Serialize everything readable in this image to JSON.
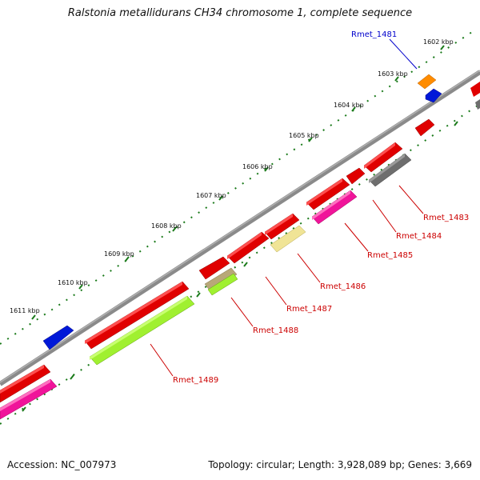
{
  "title": "Ralstonia metallidurans CH34 chromosome 1, complete sequence",
  "footer": {
    "accession": "Accession: NC_007973",
    "summary": "Topology: circular; Length: 3,928,089 bp; Genes: 3,669"
  },
  "kbp_labels": [
    "1602 kbp",
    "1603 kbp",
    "1604 kbp",
    "1605 kbp",
    "1606 kbp",
    "1607 kbp",
    "1608 kbp",
    "1609 kbp",
    "1610 kbp",
    "1611 kbp"
  ],
  "gene_labels": [
    "Rmet_1481",
    "Rmet_1483",
    "Rmet_1484",
    "Rmet_1485",
    "Rmet_1486",
    "Rmet_1487",
    "Rmet_1488",
    "Rmet_1489"
  ],
  "colors": {
    "backbone": "#7f7f7f",
    "tick": "#1a7a1a",
    "red": "#e00000",
    "blue": "#0018d8",
    "orange": "#ff8c00",
    "gray": "#6e6e6e",
    "magenta": "#f0149a",
    "khaki": "#f0e496",
    "tan": "#b8a878",
    "lime": "#a0f030",
    "label_red": "#cc0000",
    "label_blue": "#0000cc"
  }
}
